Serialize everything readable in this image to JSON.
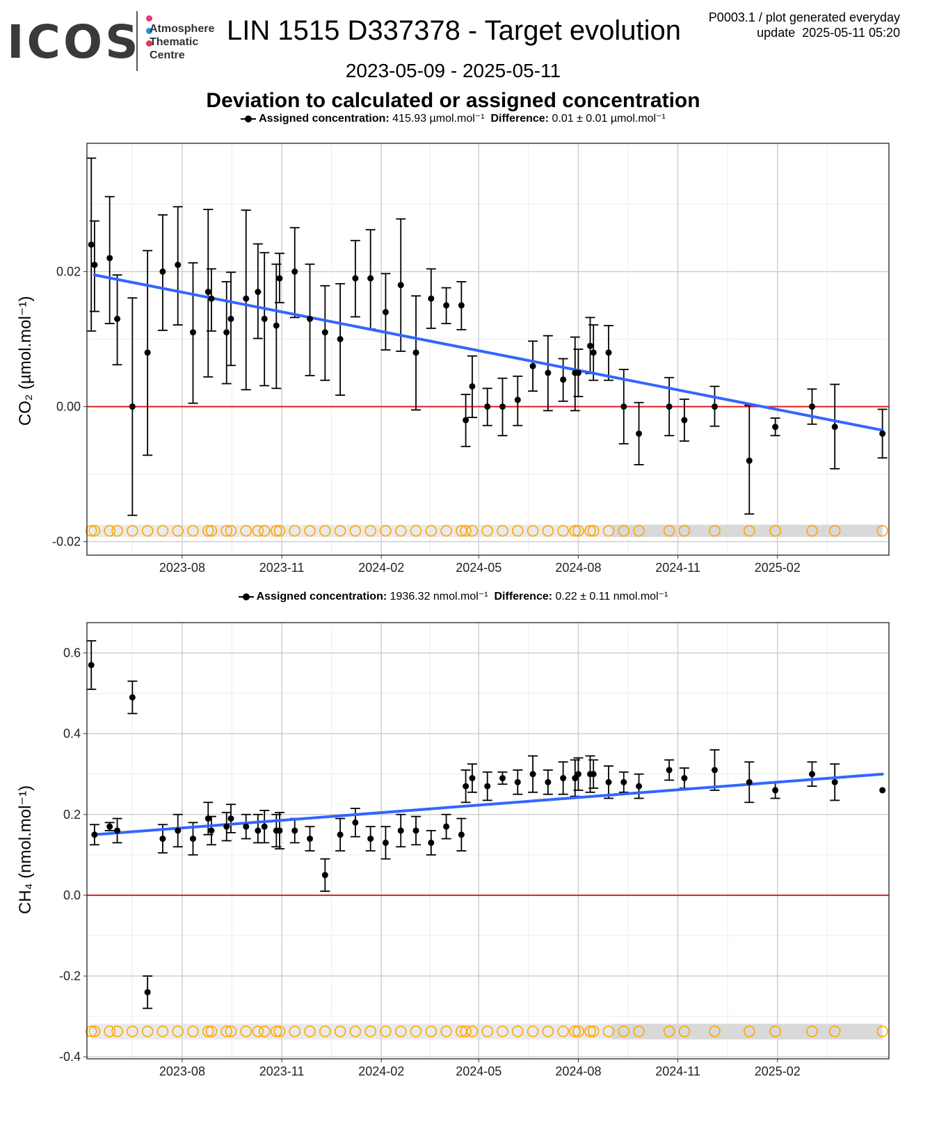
{
  "logo": {
    "wordmark": "ICOS",
    "subtitle": "Atmosphere\nThematic\nCentre",
    "dot_colors": [
      "#e63a7a",
      "#2a8fd6",
      "#e6315c"
    ]
  },
  "header": {
    "title": "LIN 1515 D337378 - Target evolution",
    "meta_line1": "P0003.1 / plot generated everyday",
    "meta_line2": "update  2025-05-11 05:20",
    "date_range": "2023-05-09 - 2025-05-11",
    "subtitle": "Deviation to calculated or assigned concentration"
  },
  "colors": {
    "trend": "#3366ff",
    "zero_line": "#e41a1c",
    "marker": "#ffa500",
    "band": "#d9d9d9",
    "grid_major": "#cccccc",
    "grid_minor": "#ececec"
  },
  "chart_data": [
    {
      "type": "scatter",
      "gas": "CO2",
      "legend": {
        "assigned_label": "Assigned concentration:",
        "assigned_value": "415.93 µmol.mol⁻¹",
        "difference_label": "Difference:",
        "difference_value": "0.01 ± 0.01 µmol.mol⁻¹"
      },
      "ylabel": "CO₂ (µmol.mol⁻¹)",
      "ylim": [
        -0.022,
        0.039
      ],
      "yticks": [
        -0.02,
        0.0,
        0.02
      ],
      "ytick_labels": [
        "-0.02",
        "0.00",
        "0.02"
      ],
      "xlim": [
        "2023-05-05",
        "2025-05-15"
      ],
      "xticks": [
        "2023-08-01",
        "2023-11-01",
        "2024-02-01",
        "2024-05-01",
        "2024-08-01",
        "2024-11-01",
        "2025-02-01"
      ],
      "xtick_labels": [
        "2023-08",
        "2023-11",
        "2024-02",
        "2024-05",
        "2024-08",
        "2024-11",
        "2025-02"
      ],
      "trend": {
        "x": [
          "2023-05-12",
          "2025-05-09"
        ],
        "y": [
          0.0195,
          -0.0035
        ]
      },
      "marker_level": -0.0184,
      "band": [
        -0.0193,
        -0.0175
      ],
      "points": [
        {
          "x": "2023-05-09",
          "y": 0.024,
          "lo": 0.0112,
          "hi": 0.0368
        },
        {
          "x": "2023-05-12",
          "y": 0.021,
          "lo": 0.0141,
          "hi": 0.0275
        },
        {
          "x": "2023-05-26",
          "y": 0.022,
          "lo": 0.0123,
          "hi": 0.0311
        },
        {
          "x": "2023-06-02",
          "y": 0.013,
          "lo": 0.0062,
          "hi": 0.0195
        },
        {
          "x": "2023-06-16",
          "y": 0.0,
          "lo": -0.0161,
          "hi": 0.0161
        },
        {
          "x": "2023-06-30",
          "y": 0.008,
          "lo": -0.0072,
          "hi": 0.0231
        },
        {
          "x": "2023-07-14",
          "y": 0.02,
          "lo": 0.0113,
          "hi": 0.0284
        },
        {
          "x": "2023-07-28",
          "y": 0.021,
          "lo": 0.0121,
          "hi": 0.0296
        },
        {
          "x": "2023-08-11",
          "y": 0.011,
          "lo": 0.0005,
          "hi": 0.0213
        },
        {
          "x": "2023-08-25",
          "y": 0.017,
          "lo": 0.0044,
          "hi": 0.0292
        },
        {
          "x": "2023-08-28",
          "y": 0.016,
          "lo": 0.0112,
          "hi": 0.0204
        },
        {
          "x": "2023-09-11",
          "y": 0.011,
          "lo": 0.0034,
          "hi": 0.0185
        },
        {
          "x": "2023-09-15",
          "y": 0.013,
          "lo": 0.0061,
          "hi": 0.0199
        },
        {
          "x": "2023-09-29",
          "y": 0.016,
          "lo": 0.0025,
          "hi": 0.0291
        },
        {
          "x": "2023-10-10",
          "y": 0.017,
          "lo": 0.0101,
          "hi": 0.0241
        },
        {
          "x": "2023-10-16",
          "y": 0.013,
          "lo": 0.0031,
          "hi": 0.0228
        },
        {
          "x": "2023-10-27",
          "y": 0.012,
          "lo": 0.0027,
          "hi": 0.0211
        },
        {
          "x": "2023-10-30",
          "y": 0.019,
          "lo": 0.0154,
          "hi": 0.0227
        },
        {
          "x": "2023-11-13",
          "y": 0.02,
          "lo": 0.0132,
          "hi": 0.0265
        },
        {
          "x": "2023-11-27",
          "y": 0.013,
          "lo": 0.0046,
          "hi": 0.0211
        },
        {
          "x": "2023-12-11",
          "y": 0.011,
          "lo": 0.0039,
          "hi": 0.0179
        },
        {
          "x": "2023-12-25",
          "y": 0.01,
          "lo": 0.0017,
          "hi": 0.0182
        },
        {
          "x": "2024-01-08",
          "y": 0.019,
          "lo": 0.0133,
          "hi": 0.0246
        },
        {
          "x": "2024-01-22",
          "y": 0.019,
          "lo": 0.0115,
          "hi": 0.0262
        },
        {
          "x": "2024-02-05",
          "y": 0.014,
          "lo": 0.0084,
          "hi": 0.0197
        },
        {
          "x": "2024-02-19",
          "y": 0.018,
          "lo": 0.0082,
          "hi": 0.0278
        },
        {
          "x": "2024-03-04",
          "y": 0.008,
          "lo": -0.0005,
          "hi": 0.0164
        },
        {
          "x": "2024-03-18",
          "y": 0.016,
          "lo": 0.0116,
          "hi": 0.0204
        },
        {
          "x": "2024-04-01",
          "y": 0.015,
          "lo": 0.0123,
          "hi": 0.0176
        },
        {
          "x": "2024-04-15",
          "y": 0.015,
          "lo": 0.0114,
          "hi": 0.0185
        },
        {
          "x": "2024-04-19",
          "y": -0.002,
          "lo": -0.0059,
          "hi": 0.0018
        },
        {
          "x": "2024-04-25",
          "y": 0.003,
          "lo": -0.0016,
          "hi": 0.0075
        },
        {
          "x": "2024-05-09",
          "y": 0.0,
          "lo": -0.0028,
          "hi": 0.0027
        },
        {
          "x": "2024-05-23",
          "y": 0.0,
          "lo": -0.0043,
          "hi": 0.0042
        },
        {
          "x": "2024-06-06",
          "y": 0.001,
          "lo": -0.0028,
          "hi": 0.0045
        },
        {
          "x": "2024-06-20",
          "y": 0.006,
          "lo": 0.0023,
          "hi": 0.0097
        },
        {
          "x": "2024-07-04",
          "y": 0.005,
          "lo": -0.0006,
          "hi": 0.0105
        },
        {
          "x": "2024-07-18",
          "y": 0.004,
          "lo": 0.0008,
          "hi": 0.0071
        },
        {
          "x": "2024-07-29",
          "y": 0.005,
          "lo": -0.0006,
          "hi": 0.0103
        },
        {
          "x": "2024-08-01",
          "y": 0.005,
          "lo": 0.0015,
          "hi": 0.0085
        },
        {
          "x": "2024-08-12",
          "y": 0.009,
          "lo": 0.0049,
          "hi": 0.0132
        },
        {
          "x": "2024-08-15",
          "y": 0.008,
          "lo": 0.0039,
          "hi": 0.0121
        },
        {
          "x": "2024-08-29",
          "y": 0.008,
          "lo": 0.0039,
          "hi": 0.012
        },
        {
          "x": "2024-09-12",
          "y": 0.0,
          "lo": -0.0055,
          "hi": 0.0055
        },
        {
          "x": "2024-09-26",
          "y": -0.004,
          "lo": -0.0086,
          "hi": 0.0006
        },
        {
          "x": "2024-10-24",
          "y": 0.0,
          "lo": -0.0043,
          "hi": 0.0043
        },
        {
          "x": "2024-11-07",
          "y": -0.002,
          "lo": -0.0051,
          "hi": 0.0011
        },
        {
          "x": "2024-12-05",
          "y": 0.0,
          "lo": -0.0029,
          "hi": 0.003
        },
        {
          "x": "2025-01-06",
          "y": -0.008,
          "lo": -0.0159,
          "hi": 0.0002
        },
        {
          "x": "2025-01-30",
          "y": -0.003,
          "lo": -0.0043,
          "hi": -0.0017
        },
        {
          "x": "2025-03-05",
          "y": 0.0,
          "lo": -0.0026,
          "hi": 0.0026
        },
        {
          "x": "2025-03-26",
          "y": -0.003,
          "lo": -0.0092,
          "hi": 0.0033
        },
        {
          "x": "2025-05-09",
          "y": -0.004,
          "lo": -0.0076,
          "hi": -0.0004
        }
      ]
    },
    {
      "type": "scatter",
      "gas": "CH4",
      "legend": {
        "assigned_label": "Assigned concentration:",
        "assigned_value": "1936.32 nmol.mol⁻¹",
        "difference_label": "Difference:",
        "difference_value": "0.22 ± 0.11 nmol.mol⁻¹"
      },
      "ylabel": "CH₄ (nmol.mol⁻¹)",
      "ylim": [
        -0.405,
        0.675
      ],
      "yticks": [
        -0.4,
        -0.2,
        0.0,
        0.2,
        0.4,
        0.6
      ],
      "ytick_labels": [
        "-0.4",
        "-0.2",
        "0.0",
        "0.2",
        "0.4",
        "0.6"
      ],
      "xlim": [
        "2023-05-05",
        "2025-05-15"
      ],
      "xticks": [
        "2023-08-01",
        "2023-11-01",
        "2024-02-01",
        "2024-05-01",
        "2024-08-01",
        "2024-11-01",
        "2025-02-01"
      ],
      "xtick_labels": [
        "2023-08",
        "2023-11",
        "2024-02",
        "2024-05",
        "2024-08",
        "2024-11",
        "2025-02"
      ],
      "trend": {
        "x": [
          "2023-05-12",
          "2025-05-09"
        ],
        "y": [
          0.15,
          0.3
        ]
      },
      "marker_level": -0.337,
      "band": [
        -0.357,
        -0.318
      ],
      "points": [
        {
          "x": "2023-05-09",
          "y": 0.57,
          "lo": 0.51,
          "hi": 0.63
        },
        {
          "x": "2023-05-12",
          "y": 0.15,
          "lo": 0.125,
          "hi": 0.175
        },
        {
          "x": "2023-05-26",
          "y": 0.17,
          "lo": 0.16,
          "hi": 0.18
        },
        {
          "x": "2023-06-02",
          "y": 0.16,
          "lo": 0.13,
          "hi": 0.19
        },
        {
          "x": "2023-06-16",
          "y": 0.49,
          "lo": 0.45,
          "hi": 0.53
        },
        {
          "x": "2023-06-30",
          "y": -0.24,
          "lo": -0.28,
          "hi": -0.2
        },
        {
          "x": "2023-07-14",
          "y": 0.14,
          "lo": 0.105,
          "hi": 0.175
        },
        {
          "x": "2023-07-28",
          "y": 0.16,
          "lo": 0.12,
          "hi": 0.2
        },
        {
          "x": "2023-08-11",
          "y": 0.14,
          "lo": 0.1,
          "hi": 0.18
        },
        {
          "x": "2023-08-25",
          "y": 0.19,
          "lo": 0.15,
          "hi": 0.23
        },
        {
          "x": "2023-08-28",
          "y": 0.16,
          "lo": 0.125,
          "hi": 0.195
        },
        {
          "x": "2023-09-11",
          "y": 0.17,
          "lo": 0.135,
          "hi": 0.205
        },
        {
          "x": "2023-09-15",
          "y": 0.19,
          "lo": 0.155,
          "hi": 0.225
        },
        {
          "x": "2023-09-29",
          "y": 0.17,
          "lo": 0.14,
          "hi": 0.2
        },
        {
          "x": "2023-10-10",
          "y": 0.16,
          "lo": 0.13,
          "hi": 0.2
        },
        {
          "x": "2023-10-16",
          "y": 0.17,
          "lo": 0.13,
          "hi": 0.21
        },
        {
          "x": "2023-10-27",
          "y": 0.16,
          "lo": 0.12,
          "hi": 0.2
        },
        {
          "x": "2023-10-30",
          "y": 0.16,
          "lo": 0.115,
          "hi": 0.205
        },
        {
          "x": "2023-11-13",
          "y": 0.16,
          "lo": 0.13,
          "hi": 0.19
        },
        {
          "x": "2023-11-27",
          "y": 0.14,
          "lo": 0.11,
          "hi": 0.17
        },
        {
          "x": "2023-12-11",
          "y": 0.05,
          "lo": 0.01,
          "hi": 0.09
        },
        {
          "x": "2023-12-25",
          "y": 0.15,
          "lo": 0.11,
          "hi": 0.19
        },
        {
          "x": "2024-01-08",
          "y": 0.18,
          "lo": 0.145,
          "hi": 0.215
        },
        {
          "x": "2024-01-22",
          "y": 0.14,
          "lo": 0.11,
          "hi": 0.17
        },
        {
          "x": "2024-02-05",
          "y": 0.13,
          "lo": 0.09,
          "hi": 0.17
        },
        {
          "x": "2024-02-19",
          "y": 0.16,
          "lo": 0.12,
          "hi": 0.2
        },
        {
          "x": "2024-03-04",
          "y": 0.16,
          "lo": 0.125,
          "hi": 0.195
        },
        {
          "x": "2024-03-18",
          "y": 0.13,
          "lo": 0.1,
          "hi": 0.16
        },
        {
          "x": "2024-04-01",
          "y": 0.17,
          "lo": 0.14,
          "hi": 0.2
        },
        {
          "x": "2024-04-15",
          "y": 0.15,
          "lo": 0.11,
          "hi": 0.19
        },
        {
          "x": "2024-04-19",
          "y": 0.27,
          "lo": 0.23,
          "hi": 0.31
        },
        {
          "x": "2024-04-25",
          "y": 0.29,
          "lo": 0.255,
          "hi": 0.325
        },
        {
          "x": "2024-05-09",
          "y": 0.27,
          "lo": 0.235,
          "hi": 0.305
        },
        {
          "x": "2024-05-23",
          "y": 0.29,
          "lo": 0.275,
          "hi": 0.305
        },
        {
          "x": "2024-06-06",
          "y": 0.28,
          "lo": 0.25,
          "hi": 0.31
        },
        {
          "x": "2024-06-20",
          "y": 0.3,
          "lo": 0.255,
          "hi": 0.345
        },
        {
          "x": "2024-07-04",
          "y": 0.28,
          "lo": 0.25,
          "hi": 0.31
        },
        {
          "x": "2024-07-18",
          "y": 0.29,
          "lo": 0.25,
          "hi": 0.33
        },
        {
          "x": "2024-07-29",
          "y": 0.29,
          "lo": 0.245,
          "hi": 0.335
        },
        {
          "x": "2024-08-01",
          "y": 0.3,
          "lo": 0.26,
          "hi": 0.34
        },
        {
          "x": "2024-08-12",
          "y": 0.3,
          "lo": 0.255,
          "hi": 0.345
        },
        {
          "x": "2024-08-15",
          "y": 0.3,
          "lo": 0.265,
          "hi": 0.335
        },
        {
          "x": "2024-08-29",
          "y": 0.28,
          "lo": 0.24,
          "hi": 0.32
        },
        {
          "x": "2024-09-12",
          "y": 0.28,
          "lo": 0.255,
          "hi": 0.305
        },
        {
          "x": "2024-09-26",
          "y": 0.27,
          "lo": 0.24,
          "hi": 0.3
        },
        {
          "x": "2024-10-24",
          "y": 0.31,
          "lo": 0.285,
          "hi": 0.335
        },
        {
          "x": "2024-11-07",
          "y": 0.29,
          "lo": 0.265,
          "hi": 0.315
        },
        {
          "x": "2024-12-05",
          "y": 0.31,
          "lo": 0.26,
          "hi": 0.36
        },
        {
          "x": "2025-01-06",
          "y": 0.28,
          "lo": 0.23,
          "hi": 0.33
        },
        {
          "x": "2025-01-30",
          "y": 0.26,
          "lo": 0.24,
          "hi": 0.28
        },
        {
          "x": "2025-03-05",
          "y": 0.3,
          "lo": 0.27,
          "hi": 0.33
        },
        {
          "x": "2025-03-26",
          "y": 0.28,
          "lo": 0.235,
          "hi": 0.325
        },
        {
          "x": "2025-05-09",
          "y": 0.26,
          "lo": null,
          "hi": null
        }
      ]
    }
  ]
}
